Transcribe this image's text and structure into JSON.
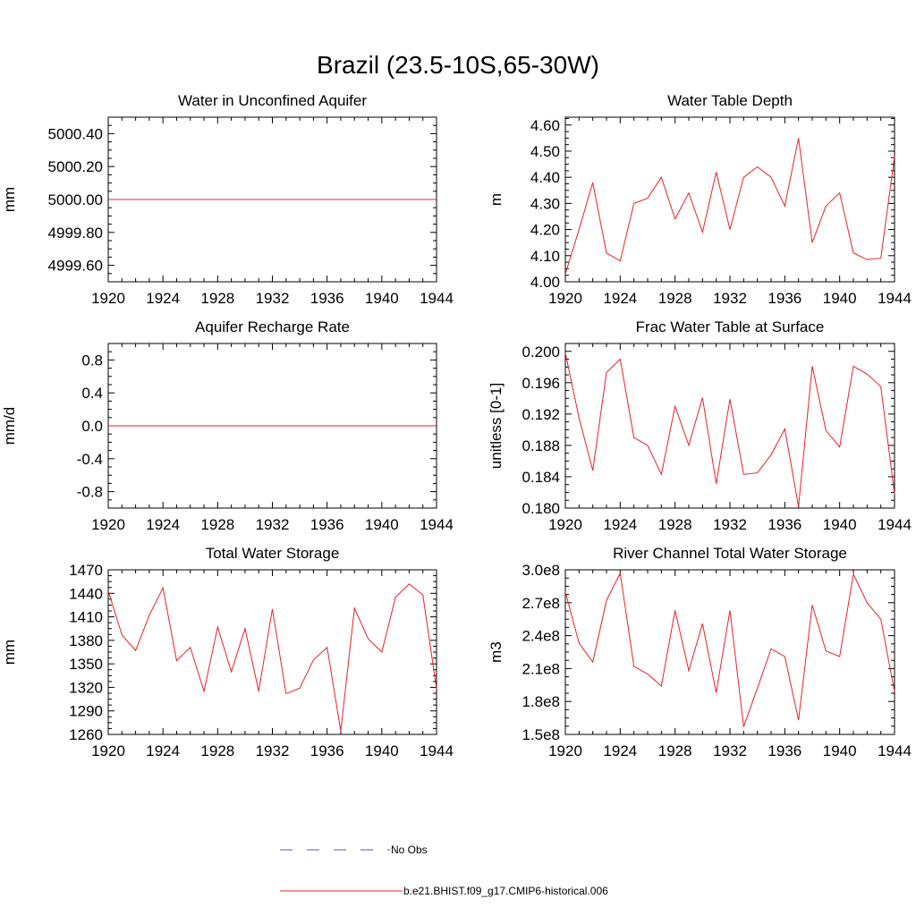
{
  "figure": {
    "title": "Brazil (23.5-10S,65-30W)",
    "legend": [
      {
        "label": "No Obs",
        "style": "dashed",
        "color": "#5a5aa0"
      },
      {
        "label": "b.e21.BHIST.f09_g17.CMIP6-historical.006",
        "style": "solid",
        "color": "#e8202a"
      }
    ]
  },
  "chart_data": [
    {
      "type": "line",
      "title": "Water in Unconfined Aquifer",
      "ylabel": "mm",
      "xlim": [
        1920,
        1944
      ],
      "ylim": [
        4999.5,
        5000.5
      ],
      "xticks": [
        "1920",
        "1924",
        "1928",
        "1932",
        "1936",
        "1940",
        "1944"
      ],
      "yticks": [
        {
          "v": 4999.6,
          "label": "4999.60"
        },
        {
          "v": 4999.8,
          "label": "4999.80"
        },
        {
          "v": 5000.0,
          "label": "5000.00"
        },
        {
          "v": 5000.2,
          "label": "5000.20"
        },
        {
          "v": 5000.4,
          "label": "5000.40"
        }
      ],
      "x": [
        1920,
        1921,
        1922,
        1923,
        1924,
        1925,
        1926,
        1927,
        1928,
        1929,
        1930,
        1931,
        1932,
        1933,
        1934,
        1935,
        1936,
        1937,
        1938,
        1939,
        1940,
        1941,
        1942,
        1943,
        1944
      ],
      "values": [
        5000,
        5000,
        5000,
        5000,
        5000,
        5000,
        5000,
        5000,
        5000,
        5000,
        5000,
        5000,
        5000,
        5000,
        5000,
        5000,
        5000,
        5000,
        5000,
        5000,
        5000,
        5000,
        5000,
        5000,
        5000
      ],
      "color": "#e8202a"
    },
    {
      "type": "line",
      "title": "Water Table Depth",
      "ylabel": "m",
      "xlim": [
        1920,
        1944
      ],
      "ylim": [
        4.0,
        4.63
      ],
      "xticks": [
        "1920",
        "1924",
        "1928",
        "1932",
        "1936",
        "1940",
        "1944"
      ],
      "yticks": [
        {
          "v": 4.0,
          "label": "4.00"
        },
        {
          "v": 4.1,
          "label": "4.10"
        },
        {
          "v": 4.2,
          "label": "4.20"
        },
        {
          "v": 4.3,
          "label": "4.30"
        },
        {
          "v": 4.4,
          "label": "4.40"
        },
        {
          "v": 4.5,
          "label": "4.50"
        },
        {
          "v": 4.6,
          "label": "4.60"
        }
      ],
      "x": [
        1920,
        1921,
        1922,
        1923,
        1924,
        1925,
        1926,
        1927,
        1928,
        1929,
        1930,
        1931,
        1932,
        1933,
        1934,
        1935,
        1936,
        1937,
        1938,
        1939,
        1940,
        1941,
        1942,
        1943,
        1944
      ],
      "values": [
        4.03,
        4.2,
        4.38,
        4.11,
        4.08,
        4.3,
        4.32,
        4.4,
        4.24,
        4.34,
        4.19,
        4.42,
        4.2,
        4.4,
        4.44,
        4.4,
        4.29,
        4.55,
        4.15,
        4.29,
        4.34,
        4.11,
        4.085,
        4.09,
        4.48
      ],
      "color": "#e8202a"
    },
    {
      "type": "line",
      "title": "Aquifer Recharge Rate",
      "ylabel": "mm/d",
      "xlim": [
        1920,
        1944
      ],
      "ylim": [
        -1.0,
        1.0
      ],
      "xticks": [
        "1920",
        "1924",
        "1928",
        "1932",
        "1936",
        "1940",
        "1944"
      ],
      "yticks": [
        {
          "v": -0.8,
          "label": "-0.8"
        },
        {
          "v": -0.4,
          "label": "-0.4"
        },
        {
          "v": 0.0,
          "label": "0.0"
        },
        {
          "v": 0.4,
          "label": "0.4"
        },
        {
          "v": 0.8,
          "label": "0.8"
        }
      ],
      "x": [
        1920,
        1921,
        1922,
        1923,
        1924,
        1925,
        1926,
        1927,
        1928,
        1929,
        1930,
        1931,
        1932,
        1933,
        1934,
        1935,
        1936,
        1937,
        1938,
        1939,
        1940,
        1941,
        1942,
        1943,
        1944
      ],
      "values": [
        0,
        0,
        0,
        0,
        0,
        0,
        0,
        0,
        0,
        0,
        0,
        0,
        0,
        0,
        0,
        0,
        0,
        0,
        0,
        0,
        0,
        0,
        0,
        0,
        0
      ],
      "color": "#e8202a"
    },
    {
      "type": "line",
      "title": "Frac Water Table at Surface",
      "ylabel": "unitless [0-1]",
      "xlim": [
        1920,
        1944
      ],
      "ylim": [
        0.18,
        0.201
      ],
      "xticks": [
        "1920",
        "1924",
        "1928",
        "1932",
        "1936",
        "1940",
        "1944"
      ],
      "yticks": [
        {
          "v": 0.18,
          "label": "0.180"
        },
        {
          "v": 0.184,
          "label": "0.184"
        },
        {
          "v": 0.188,
          "label": "0.188"
        },
        {
          "v": 0.192,
          "label": "0.192"
        },
        {
          "v": 0.196,
          "label": "0.196"
        },
        {
          "v": 0.2,
          "label": "0.200"
        }
      ],
      "x": [
        1920,
        1921,
        1922,
        1923,
        1924,
        1925,
        1926,
        1927,
        1928,
        1929,
        1930,
        1931,
        1932,
        1933,
        1934,
        1935,
        1936,
        1937,
        1938,
        1939,
        1940,
        1941,
        1942,
        1943,
        1944
      ],
      "values": [
        0.1998,
        0.1915,
        0.1848,
        0.1973,
        0.199,
        0.189,
        0.188,
        0.1843,
        0.193,
        0.188,
        0.1941,
        0.1831,
        0.1939,
        0.1843,
        0.1845,
        0.1868,
        0.1901,
        0.1802,
        0.1981,
        0.1899,
        0.1878,
        0.1981,
        0.1971,
        0.1955,
        0.1818
      ],
      "color": "#e8202a"
    },
    {
      "type": "line",
      "title": "Total Water Storage",
      "ylabel": "mm",
      "xlim": [
        1920,
        1944
      ],
      "ylim": [
        1260,
        1470
      ],
      "xticks": [
        "1920",
        "1924",
        "1928",
        "1932",
        "1936",
        "1940",
        "1944"
      ],
      "yticks": [
        {
          "v": 1260,
          "label": "1260"
        },
        {
          "v": 1290,
          "label": "1290"
        },
        {
          "v": 1320,
          "label": "1320"
        },
        {
          "v": 1350,
          "label": "1350"
        },
        {
          "v": 1380,
          "label": "1380"
        },
        {
          "v": 1410,
          "label": "1410"
        },
        {
          "v": 1440,
          "label": "1440"
        },
        {
          "v": 1470,
          "label": "1470"
        }
      ],
      "x": [
        1920,
        1921,
        1922,
        1923,
        1924,
        1925,
        1926,
        1927,
        1928,
        1929,
        1930,
        1931,
        1932,
        1933,
        1934,
        1935,
        1936,
        1937,
        1938,
        1939,
        1940,
        1941,
        1942,
        1943,
        1944
      ],
      "values": [
        1443,
        1387,
        1367,
        1412,
        1447,
        1354,
        1371,
        1315,
        1397,
        1340,
        1395,
        1315,
        1420,
        1312,
        1319,
        1355,
        1371,
        1264,
        1421,
        1382,
        1365,
        1435,
        1452,
        1438,
        1318
      ],
      "color": "#e8202a"
    },
    {
      "type": "line",
      "title": "River Channel Total Water Storage",
      "ylabel": "m3",
      "xlim": [
        1920,
        1944
      ],
      "ylim": [
        150000000,
        300000000
      ],
      "xticks": [
        "1920",
        "1924",
        "1928",
        "1932",
        "1936",
        "1940",
        "1944"
      ],
      "yticks": [
        {
          "v": 150000000,
          "label": "1.5e8"
        },
        {
          "v": 180000000,
          "label": "1.8e8"
        },
        {
          "v": 210000000,
          "label": "2.1e8"
        },
        {
          "v": 240000000,
          "label": "2.4e8"
        },
        {
          "v": 270000000,
          "label": "2.7e8"
        },
        {
          "v": 300000000,
          "label": "3.0e8"
        }
      ],
      "x": [
        1920,
        1921,
        1922,
        1923,
        1924,
        1925,
        1926,
        1927,
        1928,
        1929,
        1930,
        1931,
        1932,
        1933,
        1934,
        1935,
        1936,
        1937,
        1938,
        1939,
        1940,
        1941,
        1942,
        1943,
        1944
      ],
      "values": [
        280000000,
        233000000,
        216000000,
        272000000,
        297000000,
        212000000,
        205000000,
        194000000,
        263000000,
        208000000,
        251000000,
        188000000,
        263000000,
        157000000,
        192000000,
        228000000,
        221000000,
        163000000,
        268000000,
        226000000,
        221000000,
        296000000,
        270000000,
        255000000,
        189000000
      ],
      "color": "#e8202a"
    }
  ]
}
